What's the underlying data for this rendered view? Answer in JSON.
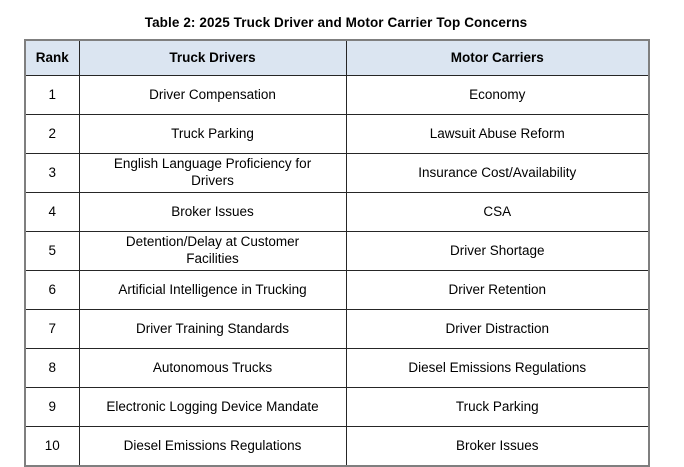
{
  "title": "Table 2: 2025 Truck Driver and Motor Carrier Top Concerns",
  "table": {
    "headers": [
      "Rank",
      "Truck Drivers",
      "Motor Carriers"
    ],
    "rows": [
      {
        "rank": "1",
        "truck_drivers": "Driver Compensation",
        "motor_carriers": "Economy"
      },
      {
        "rank": "2",
        "truck_drivers": "Truck Parking",
        "motor_carriers": "Lawsuit Abuse Reform"
      },
      {
        "rank": "3",
        "truck_drivers": "English Language Proficiency for Drivers",
        "motor_carriers": "Insurance Cost/Availability"
      },
      {
        "rank": "4",
        "truck_drivers": "Broker Issues",
        "motor_carriers": "CSA"
      },
      {
        "rank": "5",
        "truck_drivers": "Detention/Delay at Customer Facilities",
        "motor_carriers": "Driver Shortage"
      },
      {
        "rank": "6",
        "truck_drivers": "Artificial Intelligence in Trucking",
        "motor_carriers": "Driver Retention"
      },
      {
        "rank": "7",
        "truck_drivers": "Driver Training Standards",
        "motor_carriers": "Driver Distraction"
      },
      {
        "rank": "8",
        "truck_drivers": "Autonomous Trucks",
        "motor_carriers": "Diesel Emissions Regulations"
      },
      {
        "rank": "9",
        "truck_drivers": "Electronic Logging Device Mandate",
        "motor_carriers": "Truck Parking"
      },
      {
        "rank": "10",
        "truck_drivers": "Diesel Emissions Regulations",
        "motor_carriers": "Broker Issues"
      }
    ]
  },
  "colors": {
    "header_background": "#dbe5f1",
    "grid_line": "#262626",
    "outer_border": "#7f7f7f",
    "text": "#000000",
    "page_background": "#ffffff"
  }
}
